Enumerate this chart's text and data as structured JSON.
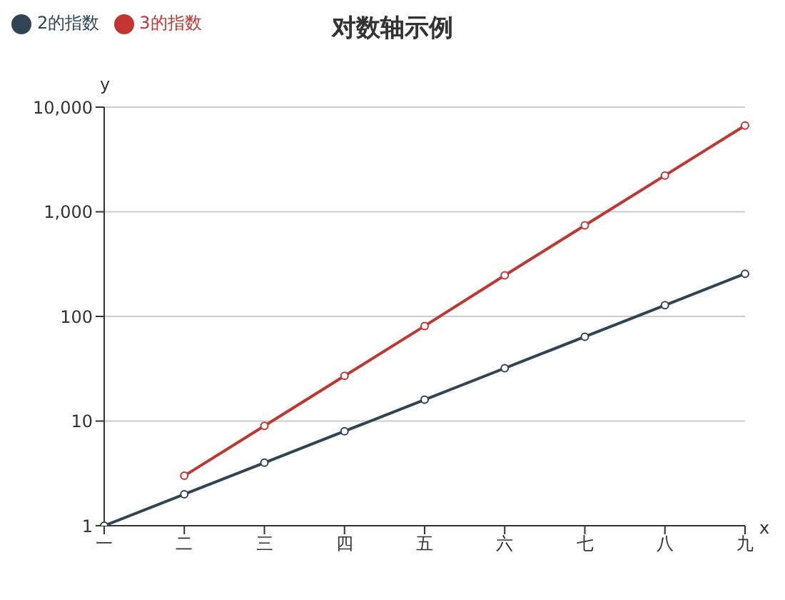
{
  "chart_data": {
    "type": "line",
    "title": "对数轴示例",
    "xlabel": "x",
    "ylabel": "y",
    "categories": [
      "一",
      "二",
      "三",
      "四",
      "五",
      "六",
      "七",
      "八",
      "九"
    ],
    "series": [
      {
        "name": "2的指数",
        "color": "#2f4554",
        "values": [
          1,
          2,
          4,
          8,
          16,
          32,
          64,
          128,
          256
        ]
      },
      {
        "name": "3的指数",
        "color": "#c23531",
        "values": [
          null,
          3,
          9,
          27,
          81,
          247,
          741,
          2223,
          6669
        ]
      }
    ],
    "log": true,
    "ylim": [
      1,
      10000
    ],
    "yticks": [
      1,
      10,
      100,
      {
        "value": 1000,
        "label": "1,000"
      },
      {
        "value": 10000,
        "label": "10,000"
      }
    ],
    "grid": "y",
    "legend": "top left",
    "marker": "circle",
    "line_style": "solid"
  }
}
